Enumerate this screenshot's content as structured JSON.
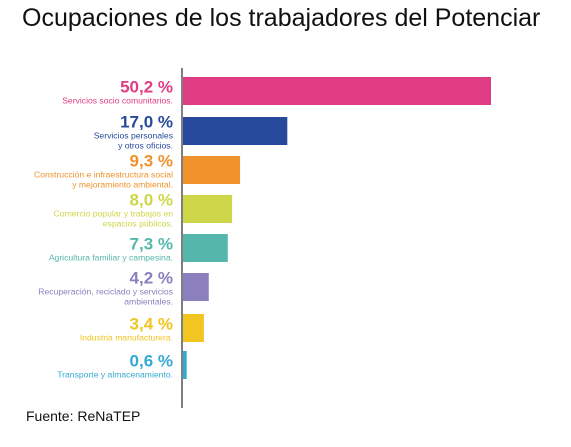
{
  "title": "Ocupaciones de los trabajadores del Potenciar",
  "source": "Fuente: ReNaTEP",
  "chart_data": {
    "type": "bar",
    "orientation": "horizontal",
    "title": "Ocupaciones de los trabajadores del Potenciar",
    "xlim": [
      0,
      50.2
    ],
    "grid": false,
    "legend": "none",
    "categories": [
      "Servicios socio comunitarios.",
      "Servicios personales\ny otros oficios.",
      "Construcción e infraestructura social\ny mejoramiento ambiental.",
      "Comercio popular y trabajos en\nespacios públicos.",
      "Agricultura familiar y campesina.",
      "Recuperación, reciclado y servicios\nambientales.",
      "Industria manufacturera.",
      "Transporte y almacenamiento."
    ],
    "values": [
      50.2,
      17.0,
      9.3,
      8.0,
      7.3,
      4.2,
      3.4,
      0.6
    ],
    "value_labels": [
      "50,2 %",
      "17,0 %",
      "9,3 %",
      "8,0 %",
      "7,3 %",
      "4,2 %",
      "3,4 %",
      "0,6 %"
    ],
    "colors": [
      "#e03c84",
      "#27499b",
      "#f0922c",
      "#cdd749",
      "#55b7ab",
      "#8b7fbd",
      "#f2c520",
      "#35a9d5"
    ]
  }
}
